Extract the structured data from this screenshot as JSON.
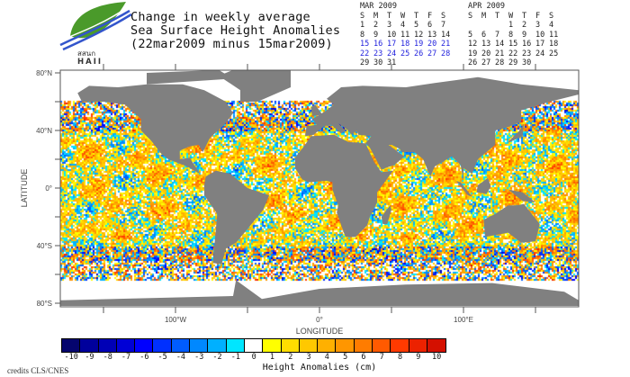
{
  "logo": {
    "text_top": "สสนก",
    "text_bottom": "HAII"
  },
  "title": {
    "line1": "Change in weekly average",
    "line2": "Sea Surface Height Anomalies",
    "line3": "(22mar2009 minus 15mar2009)"
  },
  "calendars": [
    {
      "label": "MAR 2009",
      "weekdays": [
        "S",
        "M",
        "T",
        "W",
        "T",
        "F",
        "S"
      ],
      "weeks": [
        [
          "1",
          "2",
          "3",
          "4",
          "5",
          "6",
          "7"
        ],
        [
          "8",
          "9",
          "10",
          "11",
          "12",
          "13",
          "14"
        ],
        [
          "15",
          "16",
          "17",
          "18",
          "19",
          "20",
          "21"
        ],
        [
          "22",
          "23",
          "24",
          "25",
          "26",
          "27",
          "28"
        ],
        [
          "29",
          "30",
          "31",
          "",
          "",
          "",
          ""
        ]
      ],
      "highlight_rows": [
        2,
        3
      ]
    },
    {
      "label": "APR 2009",
      "weekdays": [
        "S",
        "M",
        "T",
        "W",
        "T",
        "F",
        "S"
      ],
      "weeks": [
        [
          "",
          "",
          "",
          "1",
          "2",
          "3",
          "4"
        ],
        [
          "5",
          "6",
          "7",
          "8",
          "9",
          "10",
          "11"
        ],
        [
          "12",
          "13",
          "14",
          "15",
          "16",
          "17",
          "18"
        ],
        [
          "19",
          "20",
          "21",
          "22",
          "23",
          "24",
          "25"
        ],
        [
          "26",
          "27",
          "28",
          "29",
          "30",
          "",
          ""
        ]
      ],
      "highlight_rows": []
    }
  ],
  "map": {
    "lat_labels": [
      "80°N",
      "40°N",
      "0°",
      "40°S",
      "80°S"
    ],
    "lat_values": [
      80,
      40,
      0,
      -40,
      -80
    ],
    "lon_labels": [
      "100°W",
      "0°",
      "100°E"
    ],
    "lon_values": [
      -100,
      0,
      100
    ],
    "ylabel": "LATITUDE",
    "xlabel": "LONGITUDE",
    "land_color": "#808080",
    "nodata_color": "#ffffff"
  },
  "colorbar": {
    "title": "Height Anomalies (cm)",
    "labels": [
      "-10",
      "-9",
      "-8",
      "-7",
      "-6",
      "-5",
      "-4",
      "-3",
      "-2",
      "-1",
      "0",
      "1",
      "2",
      "3",
      "4",
      "5",
      "6",
      "7",
      "8",
      "9",
      "10"
    ],
    "colors": [
      "#05056e",
      "#00009c",
      "#0000b6",
      "#0000d6",
      "#0000ff",
      "#0030ff",
      "#005cff",
      "#0088ff",
      "#00b0ff",
      "#00e6ff",
      "#ffffff",
      "#ffff00",
      "#ffdd00",
      "#ffc800",
      "#ffb000",
      "#ff9600",
      "#ff7c00",
      "#ff5a00",
      "#ff3a00",
      "#ec2200",
      "#d41000"
    ]
  },
  "credits": "credits CLS/CNES"
}
